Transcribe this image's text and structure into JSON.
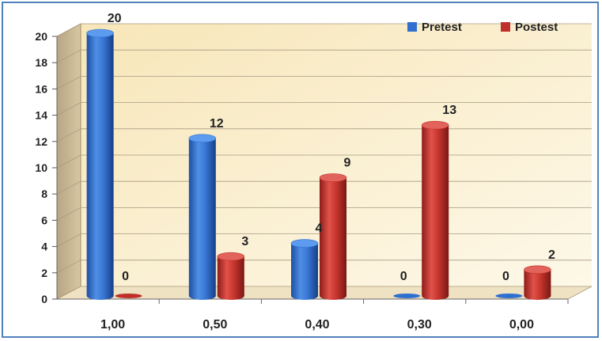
{
  "chart_data": {
    "type": "bar",
    "categories": [
      "1,00",
      "0,50",
      "0,40",
      "0,30",
      "0,00"
    ],
    "series": [
      {
        "name": "Pretest",
        "values": [
          20,
          12,
          4,
          0,
          0
        ],
        "color": "#2e6fd0"
      },
      {
        "name": "Postest",
        "values": [
          0,
          3,
          9,
          13,
          2
        ],
        "color": "#c0302a"
      }
    ],
    "ylim": [
      0,
      20
    ],
    "yticks": [
      "0",
      "2",
      "4",
      "6",
      "8",
      "10",
      "12",
      "14",
      "16",
      "18",
      "20"
    ],
    "grid": true,
    "legend_position": "top-right",
    "plot_background": "#fbf1d3"
  }
}
